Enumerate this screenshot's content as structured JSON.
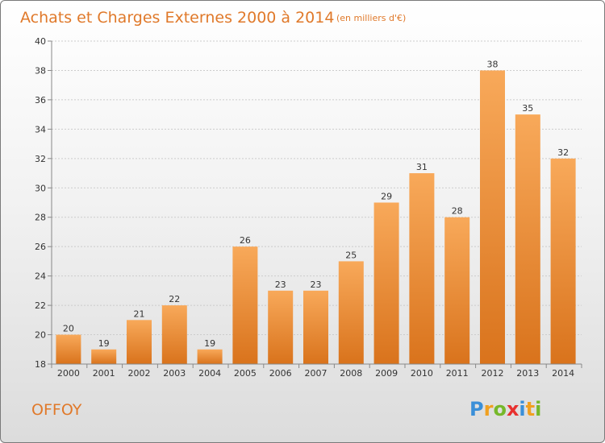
{
  "chart_data": {
    "type": "bar",
    "title": "Achats et Charges Externes 2000 à 2014",
    "subtitle": "(en milliers d'€)",
    "categories": [
      "2000",
      "2001",
      "2002",
      "2003",
      "2004",
      "2005",
      "2006",
      "2007",
      "2008",
      "2009",
      "2010",
      "2011",
      "2012",
      "2013",
      "2014"
    ],
    "values": [
      20,
      19,
      21,
      22,
      19,
      26,
      23,
      23,
      25,
      29,
      31,
      28,
      38,
      35,
      32
    ],
    "data_labels": [
      "20",
      "19",
      "21",
      "22",
      "19",
      "26",
      "23",
      "23",
      "25",
      "29",
      "31",
      "28",
      "38",
      "35",
      "32"
    ],
    "ylim": [
      18,
      40
    ],
    "yticks": [
      "18",
      "20",
      "22",
      "24",
      "26",
      "28",
      "30",
      "32",
      "34",
      "36",
      "38",
      "40"
    ],
    "xlabel": "",
    "ylabel": "",
    "grid": true,
    "bar_color_top": "#f8a95a",
    "bar_color_bottom": "#d9731c"
  },
  "commune_name": "OFFOY",
  "logo": {
    "letters": [
      "P",
      "r",
      "o",
      "x",
      "i",
      "t",
      "i"
    ],
    "colors": [
      "#3a8fd8",
      "#f0a020",
      "#76b82a",
      "#e8312f",
      "#3a8fd8",
      "#f0a020",
      "#76b82a"
    ]
  }
}
